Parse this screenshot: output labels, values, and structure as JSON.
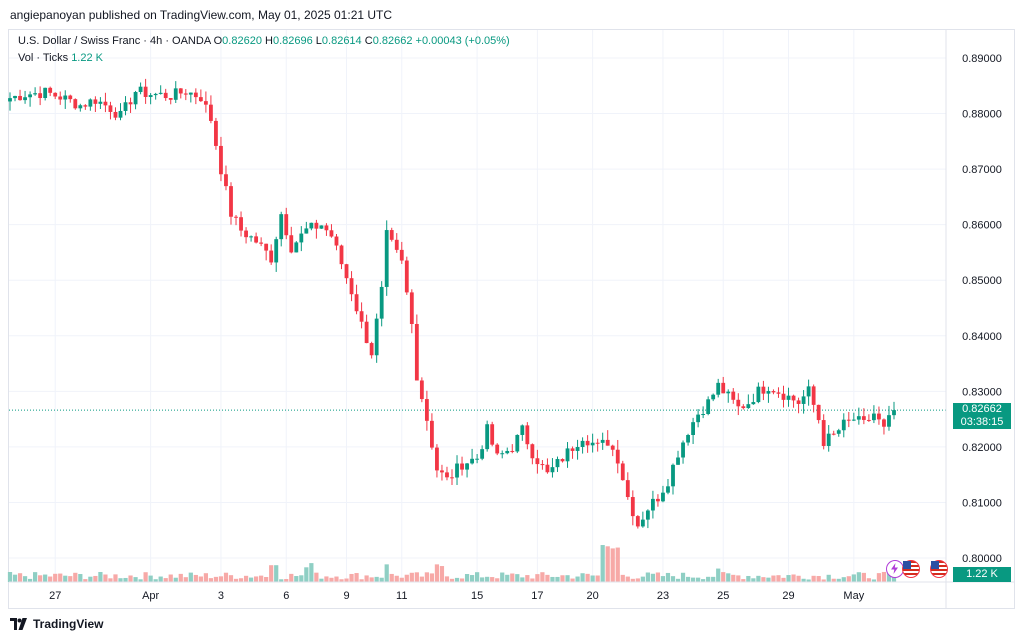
{
  "header": {
    "publisher_line": "angiepanoyan published on TradingView.com, May 01, 2025 01:21 UTC"
  },
  "legend": {
    "symbol": "U.S. Dollar / Swiss Franc · 4h · OANDA",
    "open_label": "O",
    "open": "0.82620",
    "high_label": "H",
    "high": "0.82696",
    "low_label": "L",
    "low": "0.82614",
    "close_label": "C",
    "close": "0.82662",
    "change": "+0.00043 (+0.05%)",
    "volume_label": "Vol · Ticks",
    "volume_value": "1.22 K"
  },
  "price_tag": {
    "price": "0.82662",
    "countdown": "03:38:15"
  },
  "volume_tag": "1.22 K",
  "footer": {
    "brand": "TradingView"
  },
  "colors": {
    "up": "#089981",
    "down": "#f23645",
    "vol_up": "#8fcfc4",
    "vol_down": "#f7a9a7",
    "grid": "#f0f3fa",
    "last_line": "#089981"
  },
  "chart_data": {
    "type": "candlestick",
    "ylim": [
      0.8,
      0.8905
    ],
    "y_ticks": [
      "0.89000",
      "0.88000",
      "0.87000",
      "0.86000",
      "0.85000",
      "0.84000",
      "0.83000",
      "0.82000",
      "0.81000",
      "0.80000"
    ],
    "x_ticks": [
      "27",
      "Apr",
      "3",
      "6",
      "9",
      "11",
      "15",
      "17",
      "20",
      "23",
      "25",
      "29",
      "May"
    ],
    "last_price": 0.82662,
    "close_anchors": [
      [
        0,
        0.8828
      ],
      [
        3,
        0.8835
      ],
      [
        7,
        0.8838
      ],
      [
        10,
        0.883
      ],
      [
        14,
        0.8815
      ],
      [
        17,
        0.8825
      ],
      [
        20,
        0.881
      ],
      [
        22,
        0.8795
      ],
      [
        25,
        0.884
      ],
      [
        28,
        0.8835
      ],
      [
        32,
        0.8832
      ],
      [
        35,
        0.884
      ],
      [
        38,
        0.883
      ],
      [
        40,
        0.879
      ],
      [
        42,
        0.87
      ],
      [
        44,
        0.862
      ],
      [
        46,
        0.859
      ],
      [
        49,
        0.857
      ],
      [
        52,
        0.854
      ],
      [
        54,
        0.862
      ],
      [
        56,
        0.856
      ],
      [
        59,
        0.859
      ],
      [
        62,
        0.86
      ],
      [
        64,
        0.858
      ],
      [
        66,
        0.853
      ],
      [
        68,
        0.848
      ],
      [
        70,
        0.842
      ],
      [
        72,
        0.837
      ],
      [
        74,
        0.848
      ],
      [
        75,
        0.858
      ],
      [
        78,
        0.853
      ],
      [
        80,
        0.842
      ],
      [
        81,
        0.833
      ],
      [
        83,
        0.825
      ],
      [
        85,
        0.816
      ],
      [
        87,
        0.814
      ],
      [
        90,
        0.817
      ],
      [
        93,
        0.818
      ],
      [
        95,
        0.823
      ],
      [
        97,
        0.818
      ],
      [
        100,
        0.82
      ],
      [
        102,
        0.823
      ],
      [
        104,
        0.819
      ],
      [
        107,
        0.815
      ],
      [
        109,
        0.817
      ],
      [
        112,
        0.82
      ],
      [
        114,
        0.822
      ],
      [
        117,
        0.82
      ],
      [
        119,
        0.821
      ],
      [
        121,
        0.818
      ],
      [
        123,
        0.811
      ],
      [
        125,
        0.806
      ],
      [
        127,
        0.809
      ],
      [
        129,
        0.811
      ],
      [
        131,
        0.814
      ],
      [
        133,
        0.819
      ],
      [
        135,
        0.823
      ],
      [
        137,
        0.826
      ],
      [
        139,
        0.828
      ],
      [
        141,
        0.831
      ],
      [
        143,
        0.829
      ],
      [
        145,
        0.827
      ],
      [
        147,
        0.828
      ],
      [
        149,
        0.83
      ],
      [
        151,
        0.831
      ],
      [
        153,
        0.83
      ],
      [
        155,
        0.829
      ],
      [
        157,
        0.828
      ],
      [
        159,
        0.83
      ],
      [
        161,
        0.825
      ],
      [
        162,
        0.821
      ],
      [
        164,
        0.822
      ],
      [
        166,
        0.824
      ],
      [
        168,
        0.825
      ],
      [
        170,
        0.824
      ],
      [
        172,
        0.826
      ],
      [
        174,
        0.823
      ],
      [
        176,
        0.8266
      ]
    ],
    "volume_ylim": [
      0,
      100
    ],
    "volume_spikes": [
      [
        52,
        40
      ],
      [
        53,
        40
      ],
      [
        59,
        35
      ],
      [
        60,
        45
      ],
      [
        75,
        42
      ],
      [
        85,
        42
      ],
      [
        86,
        38
      ],
      [
        118,
        88
      ],
      [
        119,
        85
      ],
      [
        120,
        80
      ],
      [
        121,
        82
      ],
      [
        141,
        32
      ]
    ]
  }
}
